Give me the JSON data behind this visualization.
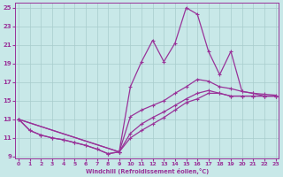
{
  "xlabel": "Windchill (Refroidissement éolien,°C)",
  "xlim": [
    -0.3,
    23.3
  ],
  "ylim": [
    8.8,
    25.5
  ],
  "xticks": [
    0,
    1,
    2,
    3,
    4,
    5,
    6,
    7,
    8,
    9,
    10,
    11,
    12,
    13,
    14,
    15,
    16,
    17,
    18,
    19,
    20,
    21,
    22,
    23
  ],
  "yticks": [
    9,
    11,
    13,
    15,
    17,
    19,
    21,
    23,
    25
  ],
  "bg": "#c8e8e8",
  "grid_color": "#a8cccc",
  "lc": "#993399",
  "curve_upper_x": [
    0,
    1,
    2,
    3,
    4,
    5,
    6,
    7,
    8,
    9,
    10,
    11,
    12,
    13,
    14,
    15,
    16,
    17,
    18,
    19,
    20,
    21,
    22,
    23
  ],
  "curve_upper_y": [
    13.0,
    11.8,
    11.3,
    11.0,
    10.8,
    10.5,
    10.2,
    9.8,
    9.3,
    9.5,
    16.5,
    19.2,
    21.5,
    19.2,
    21.2,
    25.0,
    24.3,
    20.3,
    17.8,
    20.3,
    16.0,
    15.8,
    15.5,
    15.5
  ],
  "curve_mid1_x": [
    0,
    9,
    10,
    11,
    12,
    13,
    14,
    15,
    16,
    17,
    18,
    19,
    20,
    21,
    22,
    23
  ],
  "curve_mid1_y": [
    13.0,
    9.5,
    13.3,
    14.0,
    14.5,
    15.0,
    15.8,
    16.5,
    17.3,
    17.1,
    16.5,
    16.3,
    16.0,
    15.8,
    15.7,
    15.6
  ],
  "curve_mid2_x": [
    0,
    9,
    10,
    11,
    12,
    13,
    14,
    15,
    16,
    17,
    18,
    19,
    20,
    21,
    22,
    23
  ],
  "curve_mid2_y": [
    13.0,
    9.5,
    11.5,
    12.5,
    13.2,
    13.8,
    14.5,
    15.2,
    15.8,
    16.1,
    15.8,
    15.5,
    15.5,
    15.5,
    15.5,
    15.5
  ],
  "curve_lower_x": [
    0,
    1,
    2,
    3,
    4,
    5,
    6,
    7,
    8,
    9,
    10,
    11,
    12,
    13,
    14,
    15,
    16,
    17,
    18,
    19,
    20,
    21,
    22,
    23
  ],
  "curve_lower_y": [
    13.0,
    11.8,
    11.3,
    11.0,
    10.8,
    10.5,
    10.2,
    9.8,
    9.3,
    9.5,
    11.0,
    11.8,
    12.5,
    13.2,
    14.0,
    14.8,
    15.2,
    15.8,
    15.8,
    15.5,
    15.5,
    15.5,
    15.5,
    15.5
  ]
}
